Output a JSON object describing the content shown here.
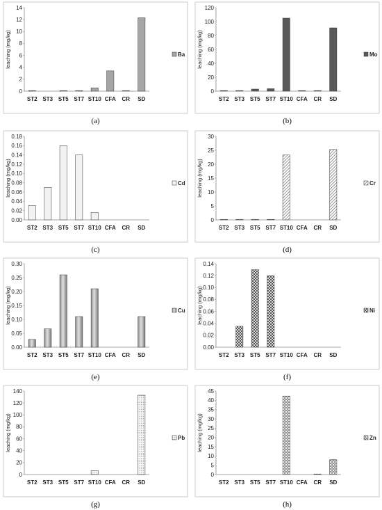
{
  "chart_data": [
    {
      "type": "bar",
      "caption": "(a)",
      "ylabel": "leaching (mg/kg)",
      "categories": [
        "ST2",
        "ST3",
        "ST5",
        "ST7",
        "ST10",
        "CFA",
        "CR",
        "SD"
      ],
      "series": [
        {
          "name": "Ba",
          "values": [
            0.05,
            0,
            0.05,
            0.05,
            0.55,
            3.4,
            0.05,
            12.3
          ]
        }
      ],
      "ylim": [
        0,
        14
      ],
      "yticks": [
        0,
        2,
        4,
        6,
        8,
        10,
        12,
        14
      ],
      "tick_format": "0",
      "grid": false,
      "legend_position": "right",
      "style": {
        "fill": "#a6a6a6",
        "pattern": "solid"
      }
    },
    {
      "type": "bar",
      "caption": "(b)",
      "ylabel": "leaching (mg/kg)",
      "categories": [
        "ST2",
        "ST3",
        "ST5",
        "ST7",
        "ST10",
        "CFA",
        "CR",
        "SD"
      ],
      "series": [
        {
          "name": "Mo",
          "values": [
            0.3,
            0.2,
            3,
            3.5,
            105,
            0.2,
            0.3,
            91
          ]
        }
      ],
      "ylim": [
        0,
        120
      ],
      "yticks": [
        0,
        20,
        40,
        60,
        80,
        100,
        120
      ],
      "tick_format": "0",
      "grid": false,
      "legend_position": "right",
      "style": {
        "fill": "#595959",
        "pattern": "solid"
      }
    },
    {
      "type": "bar",
      "caption": "(c)",
      "ylabel": "leaching (mg/kg)",
      "categories": [
        "ST2",
        "ST3",
        "ST5",
        "ST7",
        "ST10",
        "CFA",
        "CR",
        "SD"
      ],
      "series": [
        {
          "name": "Cd",
          "values": [
            0.031,
            0.07,
            0.16,
            0.14,
            0.016,
            0,
            0,
            0
          ]
        }
      ],
      "ylim": [
        0,
        0.18
      ],
      "yticks": [
        0,
        0.02,
        0.04,
        0.06,
        0.08,
        0.1,
        0.12,
        0.14,
        0.16,
        0.18
      ],
      "tick_format": "0.00",
      "grid": false,
      "legend_position": "right",
      "style": {
        "fill": "#f2f2f2",
        "pattern": "solid"
      }
    },
    {
      "type": "bar",
      "caption": "(d)",
      "ylabel": "leaching (mg/kg)",
      "categories": [
        "ST2",
        "ST3",
        "ST5",
        "ST7",
        "ST10",
        "CFA",
        "CR",
        "SD"
      ],
      "series": [
        {
          "name": "Cr",
          "values": [
            0.1,
            0.1,
            0.15,
            0.1,
            23.3,
            0,
            0,
            25.3
          ]
        }
      ],
      "ylim": [
        0,
        30
      ],
      "yticks": [
        0,
        5,
        10,
        15,
        20,
        25,
        30
      ],
      "tick_format": "0",
      "grid": false,
      "legend_position": "right",
      "style": {
        "fill": "#ffffff",
        "pattern": "diagonal"
      }
    },
    {
      "type": "bar",
      "caption": "(e)",
      "ylabel": "leaching (mg/kg)",
      "categories": [
        "ST2",
        "ST3",
        "ST5",
        "ST7",
        "ST10",
        "CFA",
        "CR",
        "SD"
      ],
      "series": [
        {
          "name": "Cu",
          "values": [
            0.028,
            0.066,
            0.26,
            0.11,
            0.21,
            0,
            0,
            0.11
          ]
        }
      ],
      "ylim": [
        0,
        0.3
      ],
      "yticks": [
        0,
        0.05,
        0.1,
        0.15,
        0.2,
        0.25,
        0.3
      ],
      "tick_format": "0.00",
      "grid": false,
      "legend_position": "right",
      "style": {
        "fill": "#a6a6a6",
        "pattern": "gradient"
      }
    },
    {
      "type": "bar",
      "caption": "(f)",
      "ylabel": "leaching (mg/kg)",
      "categories": [
        "ST2",
        "ST3",
        "ST5",
        "ST7",
        "ST10",
        "CFA",
        "CR",
        "SD"
      ],
      "series": [
        {
          "name": "Ni",
          "values": [
            0,
            0.035,
            0.13,
            0.12,
            0,
            0,
            0,
            0
          ]
        }
      ],
      "ylim": [
        0,
        0.14
      ],
      "yticks": [
        0,
        0.02,
        0.04,
        0.06,
        0.08,
        0.1,
        0.12,
        0.14
      ],
      "tick_format": "0.00",
      "grid": false,
      "legend_position": "right",
      "style": {
        "fill": "#ffffff",
        "pattern": "crosshatch"
      }
    },
    {
      "type": "bar",
      "caption": "(g)",
      "ylabel": "leaching (mg/kg)",
      "categories": [
        "ST2",
        "ST3",
        "ST5",
        "ST7",
        "ST10",
        "CFA",
        "CR",
        "SD"
      ],
      "series": [
        {
          "name": "Pb",
          "values": [
            0,
            0,
            0,
            0,
            6.5,
            0,
            0,
            133
          ]
        }
      ],
      "ylim": [
        0,
        140
      ],
      "yticks": [
        0,
        20,
        40,
        60,
        80,
        100,
        120,
        140
      ],
      "tick_format": "0",
      "grid": false,
      "legend_position": "right",
      "style": {
        "fill": "#ffffff",
        "pattern": "dots"
      }
    },
    {
      "type": "bar",
      "caption": "(h)",
      "ylabel": "leaching (mg/kg)",
      "categories": [
        "ST2",
        "ST3",
        "ST5",
        "ST7",
        "ST10",
        "CFA",
        "CR",
        "SD"
      ],
      "series": [
        {
          "name": "Zn",
          "values": [
            0,
            0,
            0,
            0,
            42.3,
            0,
            0.3,
            8
          ]
        }
      ],
      "ylim": [
        0,
        45
      ],
      "yticks": [
        0,
        5,
        10,
        15,
        20,
        25,
        30,
        35,
        40,
        45
      ],
      "tick_format": "0",
      "grid": false,
      "legend_position": "right",
      "style": {
        "fill": "#ffffff",
        "pattern": "grid"
      }
    }
  ]
}
